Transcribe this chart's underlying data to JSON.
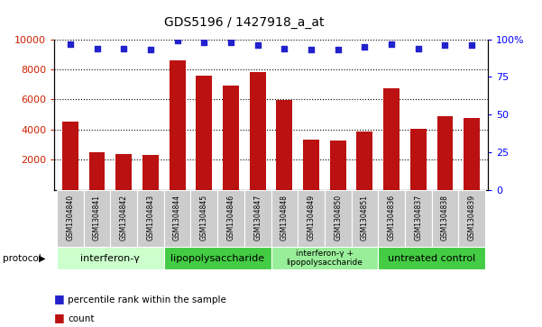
{
  "title": "GDS5196 / 1427918_a_at",
  "samples": [
    "GSM1304840",
    "GSM1304841",
    "GSM1304842",
    "GSM1304843",
    "GSM1304844",
    "GSM1304845",
    "GSM1304846",
    "GSM1304847",
    "GSM1304848",
    "GSM1304849",
    "GSM1304850",
    "GSM1304851",
    "GSM1304836",
    "GSM1304837",
    "GSM1304838",
    "GSM1304839"
  ],
  "counts": [
    4550,
    2500,
    2350,
    2300,
    8600,
    7550,
    6900,
    7800,
    5950,
    3300,
    3280,
    3850,
    6750,
    4050,
    4900,
    4750
  ],
  "percentiles": [
    97,
    94,
    94,
    93,
    99,
    98,
    98,
    96,
    94,
    93,
    93,
    95,
    97,
    94,
    96,
    96
  ],
  "protocols": [
    {
      "label": "interferon-γ",
      "start": 0,
      "end": 4,
      "color": "#ccffcc"
    },
    {
      "label": "lipopolysaccharide",
      "start": 4,
      "end": 8,
      "color": "#55cc55"
    },
    {
      "label": "interferon-γ +\nlipopolysaccharide",
      "start": 8,
      "end": 12,
      "color": "#99ee99"
    },
    {
      "label": "untreated control",
      "start": 12,
      "end": 16,
      "color": "#55cc55"
    }
  ],
  "bar_color": "#bb1111",
  "dot_color": "#2222cc",
  "ylim_left": [
    0,
    10000
  ],
  "ylim_right": [
    0,
    100
  ],
  "yticks_left": [
    2000,
    4000,
    6000,
    8000,
    10000
  ],
  "yticks_right": [
    0,
    25,
    50,
    75,
    100
  ],
  "sample_box_color": "#cccccc",
  "background_color": "#ffffff"
}
